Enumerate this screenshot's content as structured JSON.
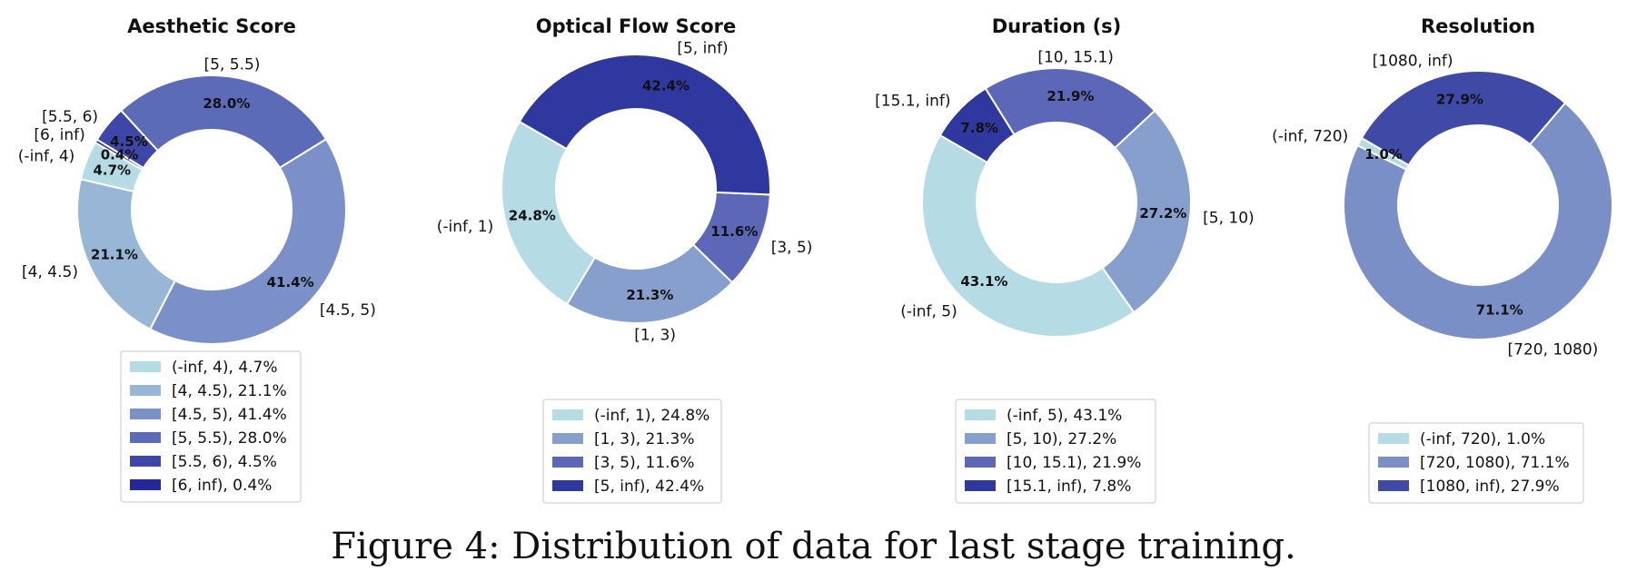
{
  "caption": "Figure 4: Distribution of data for last stage training.",
  "chart_data": [
    {
      "type": "pie",
      "title": "Aesthetic Score",
      "categories": [
        "(-inf, 4)",
        "[4, 4.5)",
        "[4.5, 5)",
        "[5, 5.5)",
        "[5.5, 6)",
        "[6, inf)"
      ],
      "values": [
        4.7,
        21.1,
        41.4,
        28.0,
        4.5,
        0.4
      ],
      "value_labels": [
        "4.7%",
        "21.1%",
        "41.4%",
        "28.0%",
        "4.5%",
        "0.4%"
      ],
      "legend": [
        "(-inf, 4), 4.7%",
        "[4, 4.5), 21.1%",
        "[4.5, 5), 41.4%",
        "[5, 5.5), 28.0%",
        "[5.5, 6), 4.5%",
        "[6, inf), 0.4%"
      ],
      "colors": [
        "#b5dbe5",
        "#98b6d6",
        "#7b90c8",
        "#5c6bb8",
        "#3e47a8",
        "#25279a"
      ],
      "legend_position": "bottom",
      "donut": true
    },
    {
      "type": "pie",
      "title": "Optical Flow Score",
      "categories": [
        "(-inf, 1)",
        "[1, 3)",
        "[3, 5)",
        "[5, inf)"
      ],
      "values": [
        24.8,
        21.3,
        11.6,
        42.4
      ],
      "value_labels": [
        "24.8%",
        "21.3%",
        "11.6%",
        "42.4%"
      ],
      "legend": [
        "(-inf, 1), 24.8%",
        "[1, 3), 21.3%",
        "[3, 5), 11.6%",
        "[5, inf), 42.4%"
      ],
      "colors": [
        "#b5dbe5",
        "#879fcd",
        "#5c68b7",
        "#2f389f"
      ],
      "legend_position": "bottom",
      "donut": true
    },
    {
      "type": "pie",
      "title": "Duration (s)",
      "categories": [
        "(-inf, 5)",
        "[5, 10)",
        "[10, 15.1)",
        "[15.1, inf)"
      ],
      "values": [
        43.1,
        27.2,
        21.9,
        7.8
      ],
      "value_labels": [
        "43.1%",
        "27.2%",
        "21.9%",
        "7.8%"
      ],
      "legend": [
        "(-inf, 5), 43.1%",
        "[5, 10), 27.2%",
        "[10, 15.1), 21.9%",
        "[15.1, inf), 7.8%"
      ],
      "colors": [
        "#b5dbe5",
        "#879fcd",
        "#5c68b7",
        "#2f389f"
      ],
      "legend_position": "bottom",
      "donut": true
    },
    {
      "type": "pie",
      "title": "Resolution",
      "categories": [
        "(-inf, 720)",
        "[720, 1080)",
        "[1080, inf)"
      ],
      "values": [
        1.0,
        71.1,
        27.9
      ],
      "value_labels": [
        "1.0%",
        "71.1%",
        "27.9%"
      ],
      "legend": [
        "(-inf, 720), 1.0%",
        "[720, 1080), 71.1%",
        "[1080, inf), 27.9%"
      ],
      "colors": [
        "#b5dbe5",
        "#7b8fc7",
        "#3e4aa6"
      ],
      "legend_position": "bottom",
      "donut": true
    }
  ]
}
